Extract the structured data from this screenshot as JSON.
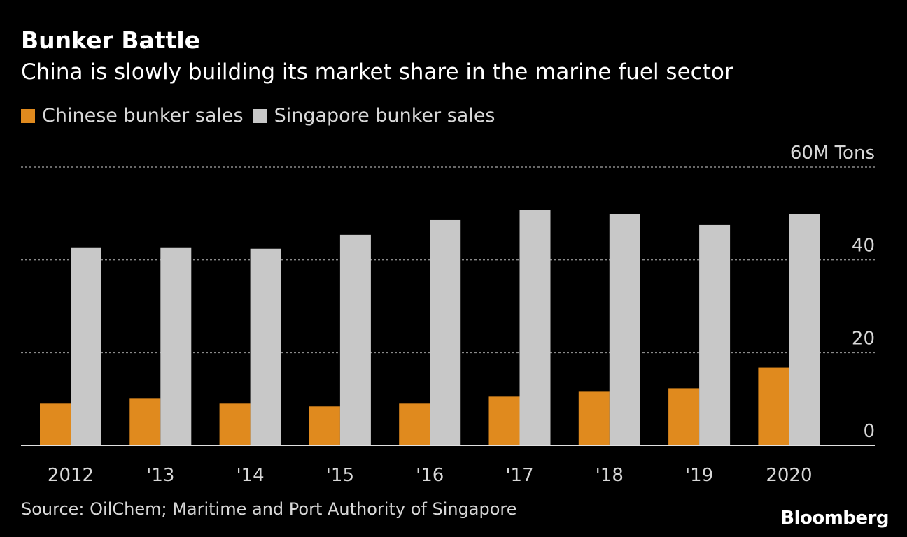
{
  "header": {
    "title": "Bunker Battle",
    "subtitle": "China is slowly building its market share in the marine fuel sector"
  },
  "footer": {
    "source": "Source: OilChem; Maritime and Port Authority of Singapore",
    "brand": "Bloomberg"
  },
  "chart_data": {
    "type": "bar",
    "categories": [
      "2012",
      "'13",
      "'14",
      "'15",
      "'16",
      "'17",
      "'18",
      "'19",
      "2020"
    ],
    "series": [
      {
        "name": "Chinese bunker sales",
        "color": "#e08a1e",
        "values": [
          9.0,
          10.2,
          9.0,
          8.4,
          9.0,
          10.5,
          11.7,
          12.3,
          16.8
        ]
      },
      {
        "name": "Singapore bunker sales",
        "color": "#c8c8c8",
        "values": [
          42.7,
          42.7,
          42.4,
          45.4,
          48.7,
          50.8,
          49.9,
          47.5,
          49.9
        ]
      }
    ],
    "ylim": [
      0,
      60
    ],
    "yticks": [
      0,
      20,
      40,
      60
    ],
    "ytick_labels": [
      "0",
      "20",
      "40",
      "60M Tons"
    ],
    "grid": true,
    "legend_position": "top-left"
  }
}
